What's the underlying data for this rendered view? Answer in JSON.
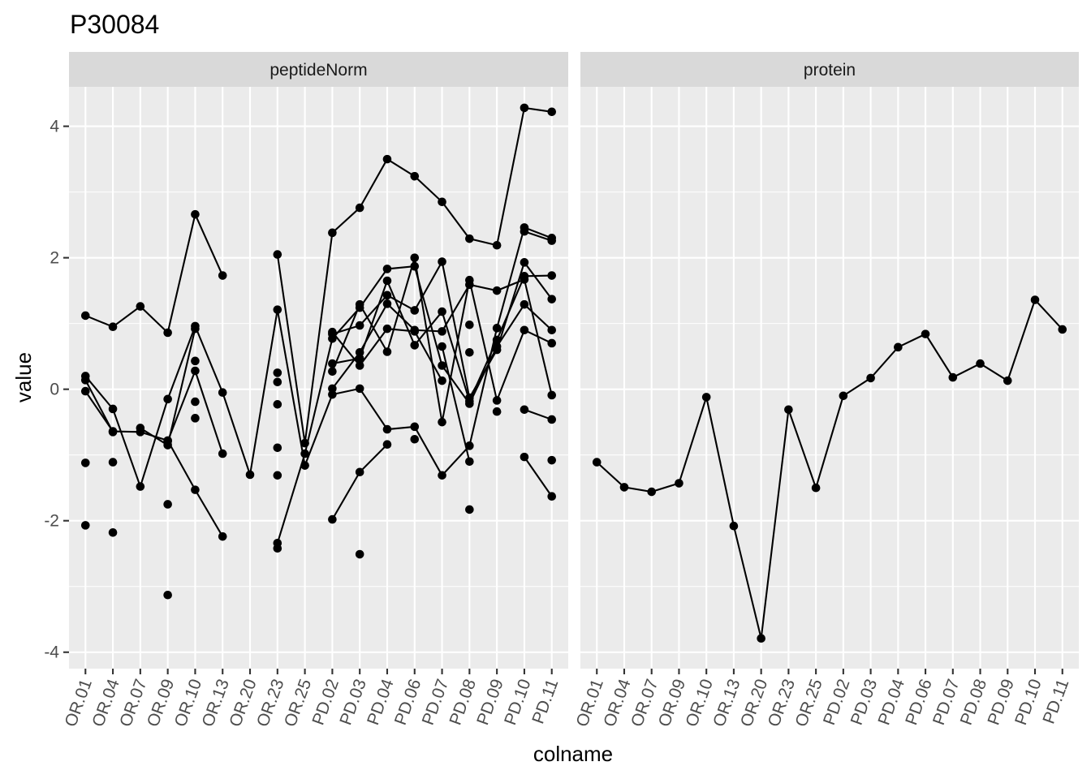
{
  "chart_data": {
    "type": "line",
    "title": "P30084",
    "xlabel": "colname",
    "ylabel": "value",
    "ylim": [
      -4.25,
      4.6
    ],
    "y_ticks": [
      -4,
      -2,
      0,
      2,
      4
    ],
    "y_tick_labels": [
      "-4",
      "-2",
      "0",
      "2",
      "4"
    ],
    "grid": true,
    "legend": "none",
    "categories": [
      "OR.01",
      "OR.04",
      "OR.07",
      "OR.09",
      "OR.10",
      "OR.13",
      "OR.20",
      "OR.23",
      "OR.25",
      "PD.02",
      "PD.03",
      "PD.04",
      "PD.06",
      "PD.07",
      "PD.08",
      "PD.09",
      "PD.10",
      "PD.11"
    ],
    "facets": [
      {
        "label": "peptideNorm",
        "series": [
          {
            "values": [
              1.12,
              0.95,
              1.26,
              0.86,
              2.66,
              1.73,
              null,
              2.05,
              -0.82,
              2.38,
              2.76,
              3.5,
              3.24,
              2.85,
              2.29,
              2.19,
              4.28,
              4.22
            ]
          },
          {
            "values": [
              0.2,
              -0.3,
              -1.48,
              -0.15,
              0.96,
              -0.05,
              -1.3,
              1.21,
              -1.16,
              -0.08,
              0.01,
              -0.61,
              -0.57,
              -1.31,
              -0.86,
              0.93,
              2.46,
              2.3
            ]
          },
          {
            "values": [
              -0.03,
              -0.64,
              -0.65,
              -0.78,
              -1.53,
              -2.24,
              null,
              -2.34,
              -0.98,
              0.77,
              1.24,
              1.83,
              1.87,
              0.36,
              -0.22,
              0.65,
              1.29,
              0.9
            ]
          },
          {
            "values": [
              -1.12,
              null,
              -0.59,
              -0.85,
              0.92,
              null,
              null,
              null,
              null,
              0.84,
              0.97,
              1.43,
              1.2,
              1.94,
              -0.13,
              0.6,
              1.93,
              1.37
            ]
          },
          {
            "values": [
              0.14,
              -0.65,
              null,
              -0.79,
              0.28,
              -0.98,
              null,
              null,
              null,
              0.01,
              0.56,
              1.3,
              0.9,
              0.88,
              1.59,
              1.5,
              1.67,
              -0.09
            ]
          },
          {
            "values": [
              null,
              null,
              null,
              null,
              null,
              null,
              null,
              null,
              null,
              0.39,
              0.47,
              1.65,
              0.67,
              1.18,
              -0.18,
              0.75,
              1.72,
              1.73
            ]
          },
          {
            "values": [
              null,
              null,
              null,
              null,
              null,
              null,
              null,
              null,
              null,
              0.27,
              1.29,
              0.57,
              2.0,
              -0.5,
              1.66,
              -0.17,
              0.9,
              0.7
            ]
          },
          {
            "values": [
              null,
              null,
              null,
              null,
              null,
              null,
              null,
              null,
              null,
              -1.98,
              -1.26,
              -0.84,
              null,
              0.65,
              -1.1,
              null,
              2.4,
              2.26
            ]
          },
          {
            "values": [
              null,
              null,
              null,
              null,
              null,
              null,
              null,
              null,
              null,
              0.87,
              0.36,
              0.92,
              0.88,
              0.13,
              null,
              null,
              -0.31,
              -0.46
            ]
          },
          {
            "values": [
              null,
              null,
              null,
              null,
              null,
              null,
              null,
              null,
              null,
              null,
              null,
              null,
              null,
              null,
              null,
              null,
              -1.03,
              -1.63
            ]
          }
        ],
        "unconnected_points": [
          {
            "category": "OR.01",
            "value": -2.07
          },
          {
            "category": "OR.04",
            "value": -1.11
          },
          {
            "category": "OR.04",
            "value": -2.18
          },
          {
            "category": "OR.09",
            "value": -1.75
          },
          {
            "category": "OR.09",
            "value": -3.13
          },
          {
            "category": "OR.10",
            "value": 0.43
          },
          {
            "category": "OR.10",
            "value": -0.19
          },
          {
            "category": "OR.10",
            "value": -0.44
          },
          {
            "category": "OR.23",
            "value": 0.25
          },
          {
            "category": "OR.23",
            "value": 0.11
          },
          {
            "category": "OR.23",
            "value": -0.23
          },
          {
            "category": "OR.23",
            "value": -0.89
          },
          {
            "category": "OR.23",
            "value": -1.31
          },
          {
            "category": "OR.23",
            "value": -2.42
          },
          {
            "category": "PD.03",
            "value": -2.51
          },
          {
            "category": "PD.06",
            "value": -0.76
          },
          {
            "category": "PD.08",
            "value": 0.98
          },
          {
            "category": "PD.08",
            "value": 0.56
          },
          {
            "category": "PD.08",
            "value": -1.83
          },
          {
            "category": "PD.09",
            "value": -0.34
          },
          {
            "category": "PD.11",
            "value": -1.08
          }
        ]
      },
      {
        "label": "protein",
        "series": [
          {
            "values": [
              -1.11,
              -1.49,
              -1.56,
              -1.43,
              -0.12,
              -2.08,
              -3.79,
              -0.31,
              -1.5,
              -0.1,
              0.17,
              0.64,
              0.84,
              0.18,
              0.39,
              0.13,
              1.36,
              0.91
            ]
          }
        ],
        "unconnected_points": []
      }
    ]
  }
}
